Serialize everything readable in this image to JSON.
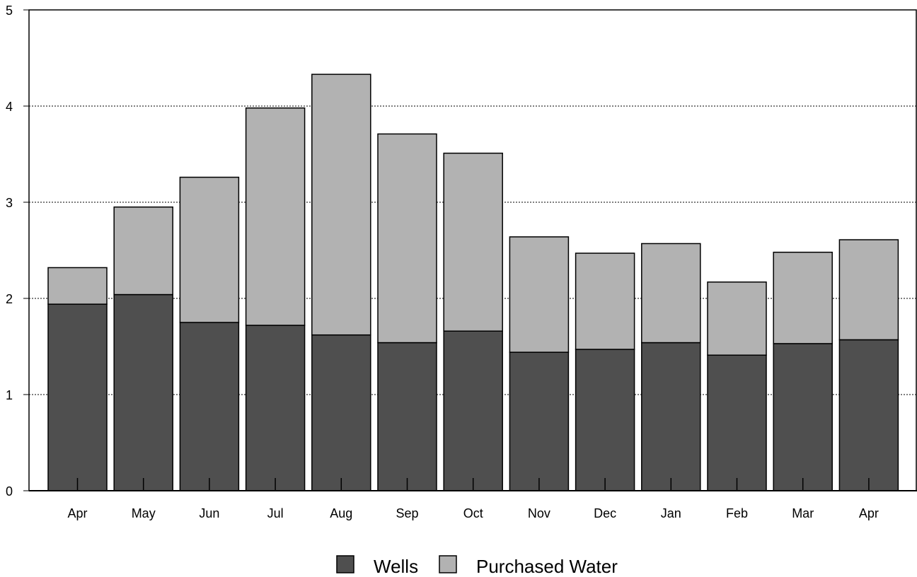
{
  "chart_data": {
    "type": "bar",
    "stacked": true,
    "categories": [
      "Apr",
      "May",
      "Jun",
      "Jul",
      "Aug",
      "Sep",
      "Oct",
      "Nov",
      "Dec",
      "Jan",
      "Feb",
      "Mar",
      "Apr"
    ],
    "series": [
      {
        "name": "Wells",
        "color": "#4f4f4f",
        "values": [
          1.94,
          2.04,
          1.75,
          1.72,
          1.62,
          1.54,
          1.66,
          1.44,
          1.47,
          1.54,
          1.41,
          1.53,
          1.57
        ]
      },
      {
        "name": "Purchased Water",
        "color": "#b2b2b2",
        "values": [
          0.38,
          0.91,
          1.51,
          2.26,
          2.71,
          2.17,
          1.85,
          1.2,
          1.0,
          1.03,
          0.76,
          0.95,
          1.04
        ]
      }
    ],
    "yticks": [
      0,
      1,
      2,
      3,
      4,
      5
    ],
    "ylim": [
      0,
      5
    ],
    "grid": true,
    "legend_position": "bottom-center",
    "title": "",
    "xlabel": "",
    "ylabel": ""
  }
}
